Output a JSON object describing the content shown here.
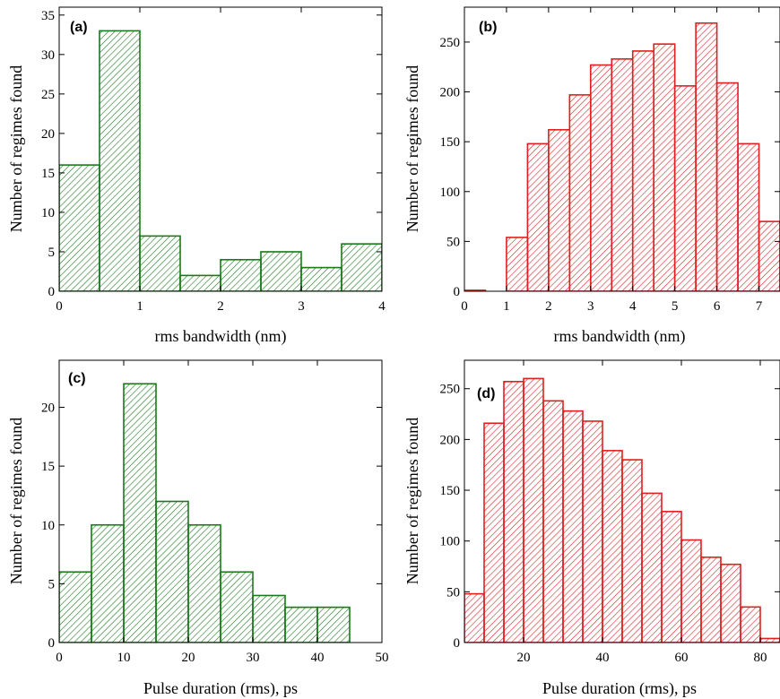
{
  "chart_data": [
    {
      "panel": "(a)",
      "type": "bar",
      "color": "#1a7a1a",
      "xlabel": "rms bandwidth (nm)",
      "ylabel": "Number of regimes found",
      "xlim": [
        0,
        4
      ],
      "ylim": [
        0,
        36
      ],
      "xticks": [
        0,
        1,
        2,
        3,
        4
      ],
      "yticks": [
        0,
        5,
        10,
        15,
        20,
        25,
        30,
        35
      ],
      "bin_width": 0.5,
      "bin_starts": [
        0,
        0.5,
        1.0,
        1.5,
        2.0,
        2.5,
        3.0,
        3.5
      ],
      "values": [
        16,
        33,
        7,
        2,
        4,
        5,
        3,
        6
      ]
    },
    {
      "panel": "(b)",
      "type": "bar",
      "color": "#e02020",
      "xlabel": "rms bandwidth (nm)",
      "ylabel": "Number of regimes found",
      "xlim": [
        0,
        7.5
      ],
      "ylim": [
        0,
        285
      ],
      "xticks": [
        0,
        1,
        2,
        3,
        4,
        5,
        6,
        7
      ],
      "yticks": [
        0,
        50,
        100,
        150,
        200,
        250
      ],
      "bin_width": 0.5,
      "bin_starts": [
        0,
        0.5,
        1.0,
        1.5,
        2.0,
        2.5,
        3.0,
        3.5,
        4.0,
        4.5,
        5.0,
        5.5,
        6.0,
        6.5,
        7.0
      ],
      "values": [
        1,
        0,
        54,
        148,
        162,
        197,
        227,
        233,
        241,
        248,
        206,
        269,
        209,
        148,
        70
      ]
    },
    {
      "panel": "(c)",
      "type": "bar",
      "color": "#1a7a1a",
      "xlabel": "Pulse duration (rms), ps",
      "ylabel": "Number of regimes found",
      "xlim": [
        0,
        50
      ],
      "ylim": [
        0,
        24
      ],
      "xticks": [
        0,
        10,
        20,
        30,
        40,
        50
      ],
      "yticks": [
        0,
        5,
        10,
        15,
        20
      ],
      "bin_width": 5,
      "bin_starts": [
        0,
        5,
        10,
        15,
        20,
        25,
        30,
        35,
        40
      ],
      "values": [
        6,
        10,
        22,
        12,
        10,
        6,
        4,
        3,
        3
      ]
    },
    {
      "panel": "(d)",
      "type": "bar",
      "color": "#e02020",
      "xlabel": "Pulse duration (rms), ps",
      "ylabel": "Number of regimes found",
      "xlim": [
        5,
        85
      ],
      "ylim": [
        0,
        278
      ],
      "xticks": [
        20,
        40,
        60,
        80
      ],
      "yticks": [
        0,
        50,
        100,
        150,
        200,
        250
      ],
      "bin_width": 5,
      "bin_starts": [
        5,
        10,
        15,
        20,
        25,
        30,
        35,
        40,
        45,
        50,
        55,
        60,
        65,
        70,
        75,
        80
      ],
      "values": [
        48,
        216,
        257,
        260,
        238,
        228,
        218,
        189,
        180,
        147,
        129,
        101,
        84,
        77,
        35,
        4
      ]
    }
  ]
}
